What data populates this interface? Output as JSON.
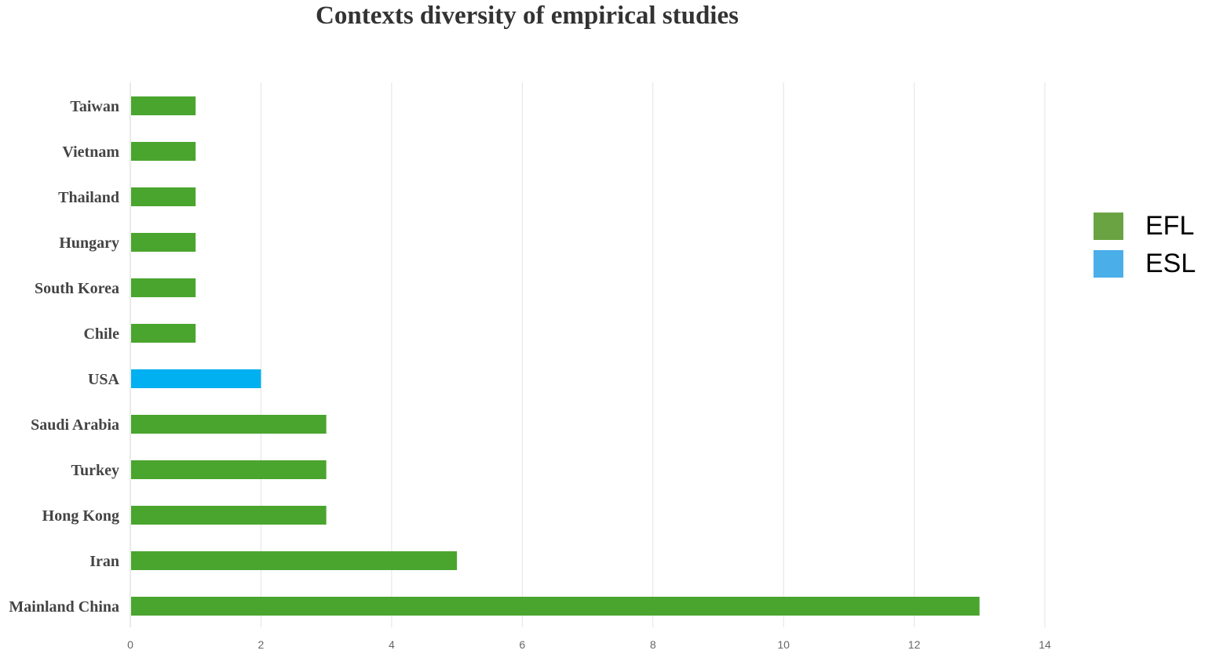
{
  "chart_data": {
    "type": "bar",
    "orientation": "horizontal",
    "title": "Contexts diversity of empirical studies",
    "categories": [
      "Taiwan",
      "Vietnam",
      "Thailand",
      "Hungary",
      "South Korea",
      "Chile",
      "USA",
      "Saudi Arabia",
      "Turkey",
      "Hong Kong",
      "Iran",
      "Mainland China"
    ],
    "values": [
      1,
      1,
      1,
      1,
      1,
      1,
      2,
      3,
      3,
      3,
      5,
      13
    ],
    "groups": [
      "EFL",
      "EFL",
      "EFL",
      "EFL",
      "EFL",
      "EFL",
      "ESL",
      "EFL",
      "EFL",
      "EFL",
      "EFL",
      "EFL"
    ],
    "xticks": [
      0,
      2,
      4,
      6,
      8,
      10,
      12,
      14
    ],
    "xlim": [
      0,
      14
    ],
    "grid": "vertical",
    "legend_position": "right",
    "legend": [
      {
        "name": "EFL",
        "color": "#6aa442"
      },
      {
        "name": "ESL",
        "color": "#4aaee9"
      }
    ],
    "bar_colors": {
      "EFL": "#4aa52e",
      "ESL": "#00b0f0"
    }
  }
}
